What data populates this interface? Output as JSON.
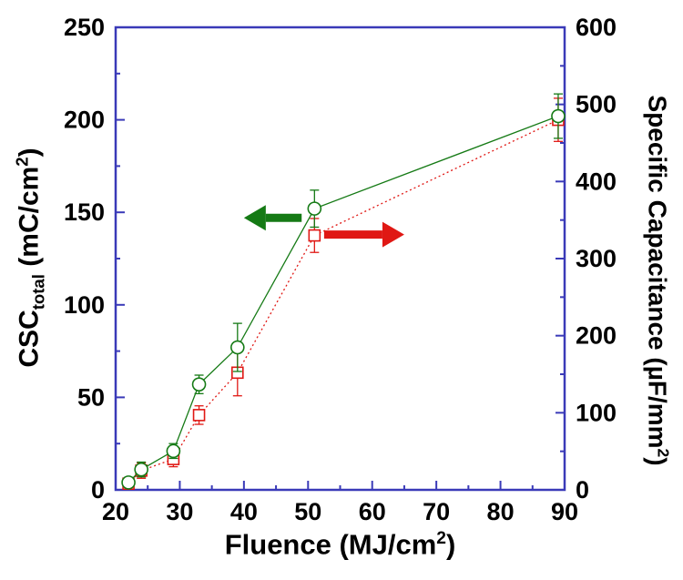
{
  "chart_data": {
    "type": "line",
    "background": "#ffffff",
    "frame_color": "#3a3ab8",
    "grid": false,
    "x_axis": {
      "title_main": "Fluence (MJ/cm",
      "title_sup": "2",
      "title_post": ")",
      "min": 20,
      "max": 90,
      "major_ticks": [
        20,
        30,
        40,
        50,
        60,
        70,
        80,
        90
      ],
      "minor_step": 5
    },
    "left_axis": {
      "title_main": "CSC",
      "title_sub": "total",
      "title_mid": " (mC/cm",
      "title_sup": "2",
      "title_post": ")",
      "min": 0,
      "max": 250,
      "major_ticks": [
        0,
        50,
        100,
        150,
        200,
        250
      ],
      "minor_step": 25
    },
    "right_axis": {
      "title_main": "Specific Capacitance (µF/mm",
      "title_sup": "2",
      "title_post": ")",
      "min": 0,
      "max": 600,
      "major_ticks": [
        0,
        100,
        200,
        300,
        400,
        500,
        600
      ],
      "minor_step": 50
    },
    "x": [
      22,
      24,
      29,
      33,
      39,
      51,
      89
    ],
    "series": [
      {
        "name": "Specific Capacitance",
        "axis": "right",
        "color": "#e01814",
        "marker": "square",
        "line_style": "dotted",
        "values": [
          8,
          25,
          40,
          97,
          152,
          330,
          480
        ],
        "errors": [
          6,
          10,
          10,
          12,
          30,
          22,
          28
        ]
      },
      {
        "name": "CSC_total",
        "axis": "left",
        "color": "#157a15",
        "marker": "circle",
        "line_style": "solid",
        "values": [
          4,
          11,
          21,
          57,
          77,
          152,
          202
        ],
        "errors": [
          2,
          4,
          4,
          5,
          13,
          10,
          12
        ]
      }
    ],
    "annotations": [
      {
        "type": "arrow",
        "series": "CSC_total",
        "color": "#157a15",
        "tail": {
          "x": 49.0,
          "y": 147
        },
        "head": {
          "x": 40.0,
          "y": 147
        }
      },
      {
        "type": "arrow",
        "series": "Specific Capacitance",
        "color": "#e01814",
        "tail": {
          "x": 52.5,
          "y": 138
        },
        "head": {
          "x": 65.0,
          "y": 138
        }
      }
    ]
  }
}
